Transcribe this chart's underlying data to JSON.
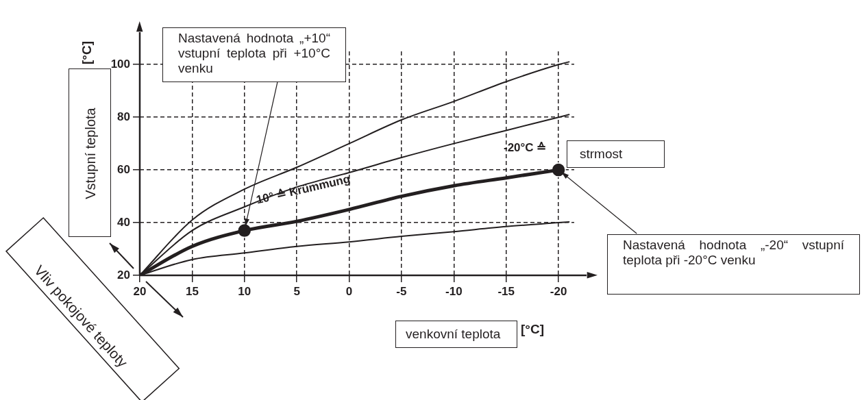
{
  "chart_data": {
    "type": "line",
    "xlabel": "venkovní teplota",
    "ylabel": "Vstupní teplota",
    "annotations": [
      {
        "text": "Nastavená hodnota „+10“ vstupní teplota při +10°C venku",
        "x": 10,
        "y": 37
      },
      {
        "text": "Nastavená hodnota „-20“ vstupní teplota při -20°C venku",
        "x": -20,
        "y": 60
      },
      "10° ≙ Krümmung",
      "-20°C ≙",
      "strmost",
      "Vliv pokojové teploty",
      "[°C]",
      "[°C]"
    ],
    "xlim": [
      20,
      -21.5
    ],
    "ylim": [
      20,
      105
    ],
    "xticks": [
      20,
      15,
      10,
      5,
      0,
      -5,
      -10,
      -15,
      -20
    ],
    "yticks": [
      20,
      40,
      60,
      80,
      100
    ],
    "grid": true,
    "legend": false,
    "marker": "none",
    "line_style": "solid",
    "series": [
      {
        "color": "#231f20",
        "x": [
          20,
          15,
          10,
          5,
          0,
          -5,
          -10,
          -15,
          -20,
          -21
        ],
        "values": [
          20,
          41,
          52.7,
          61,
          70,
          79,
          86,
          93.5,
          100,
          101
        ]
      },
      {
        "color": "#231f20",
        "x": [
          20,
          15,
          10,
          5,
          0,
          -5,
          -10,
          -15,
          -20,
          -21
        ],
        "values": [
          20,
          37,
          46,
          53.5,
          59,
          64.7,
          70,
          75,
          80,
          81
        ]
      },
      {
        "color": "#231f20",
        "x": [
          20,
          15,
          10,
          5,
          0,
          -5,
          -10,
          -15,
          -20
        ],
        "values": [
          20,
          31,
          37,
          40.5,
          45,
          50,
          54,
          57,
          60
        ]
      },
      {
        "color": "#231f20",
        "x": [
          20,
          15,
          10,
          5,
          0,
          -5,
          -10,
          -15,
          -20,
          -21
        ],
        "values": [
          20,
          26,
          28.5,
          31,
          32.7,
          34.8,
          36.6,
          38.5,
          40,
          40.3
        ]
      },
      {
        "type": "scatter",
        "marker": "circle",
        "color": "#231f20",
        "x": [
          10,
          -20
        ],
        "values": [
          37,
          60
        ]
      }
    ]
  }
}
